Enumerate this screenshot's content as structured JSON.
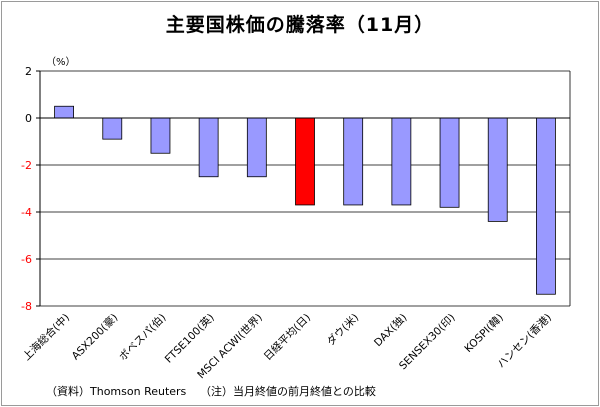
{
  "chart_data": {
    "type": "bar",
    "title": "主要国株価の騰落率（11月）",
    "ylabel": "（%）",
    "xlabel": "",
    "ylim": [
      -8,
      2
    ],
    "yticks": [
      2,
      0,
      -2,
      -4,
      -6,
      -8
    ],
    "grid": true,
    "categories": [
      "上海総合(中)",
      "ASX200(豪)",
      "ボベスパ(伯)",
      "FTSE100(英)",
      "MSCI ACWI(世界)",
      "日経平均(日)",
      "ダウ(米)",
      "DAX(独)",
      "SENSEX30(印)",
      "KOSPI(韓)",
      "ハンセン(香港)"
    ],
    "values": [
      0.5,
      -0.9,
      -1.5,
      -2.5,
      -2.5,
      -3.7,
      -3.7,
      -3.7,
      -3.8,
      -4.4,
      -7.5
    ],
    "highlight_index": 5,
    "colors": {
      "bar": "#9999ff",
      "highlight": "#ff0000",
      "grid": "#000000",
      "negative_tick": "#ff0000"
    }
  },
  "footnotes": {
    "source": "（資料）Thomson Reuters",
    "note": "（注）当月終値の前月終値との比較"
  }
}
